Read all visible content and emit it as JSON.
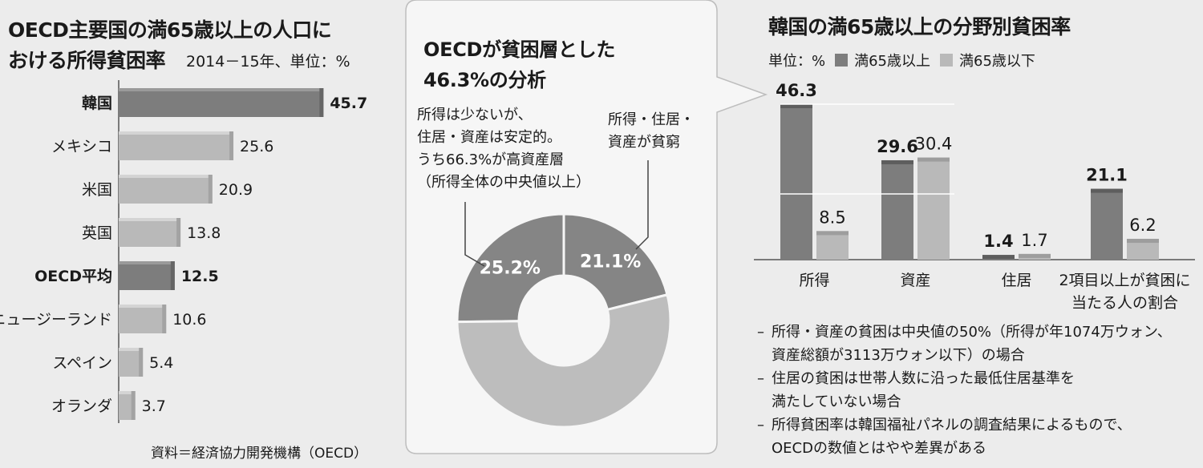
{
  "left": {
    "title_line1": "OECD主要国の満65歳以上の人口に",
    "title_line2": "おける所得貧困率",
    "subtitle": "2014－15年、単位：%",
    "source": "資料＝経済協力開発機構（OECD）"
  },
  "middle": {
    "title_line1": "OECDが貧困層とした",
    "title_line2": "46.3%の分析",
    "left_note": [
      "所得は少ないが、",
      "住居・資産は安定的。",
      "うち66.3%が高資産層",
      "（所得全体の中央値以上）"
    ],
    "right_note": [
      "所得・住居・",
      "資産が貧窮"
    ]
  },
  "right": {
    "title": "韓国の満65歳以上の分野別貧困率",
    "legend_unit": "単位：%",
    "notes": [
      "所得・資産の貧困は中央値の50%（所得が年1074万ウォン、\n資産総額が3113万ウォン以下）の場合",
      "住居の貧困は世帯人数に沿った最低住居基準を\n満たしていない場合",
      "所得貧困率は韓国福祉パネルの調査結果によるもので、\nOECDの数値とはやや差異がある"
    ]
  },
  "colors": {
    "dark_bar": "#7d7d7d",
    "light_bar": "#b9b9b9",
    "donut_dark": "#858585",
    "donut_light": "#bdbdbd",
    "bubble": "#f6f6f6"
  },
  "chart_data": [
    {
      "type": "bar",
      "orientation": "horizontal",
      "title": "OECD主要国の満65歳以上の人口における所得貧困率",
      "subtitle": "2014－15年、単位：%",
      "categories": [
        "韓国",
        "メキシコ",
        "米国",
        "英国",
        "OECD平均",
        "ニュージーランド",
        "スペイン",
        "オランダ"
      ],
      "values": [
        45.7,
        25.6,
        20.9,
        13.8,
        12.5,
        10.6,
        5.4,
        3.7
      ],
      "value_labels": [
        "45.7",
        "25.6",
        "20.9",
        "13.8",
        "12.5",
        "10.6",
        "5.4",
        "3.7"
      ],
      "highlighted": [
        "韓国",
        "OECD平均"
      ],
      "xlim": [
        0,
        46
      ]
    },
    {
      "type": "pie",
      "title": "OECDが貧困層とした46.3%の分析",
      "slices": [
        {
          "value": 25.2,
          "label": "25.2%",
          "color": "dark"
        },
        {
          "value": 21.1,
          "label": "21.1%",
          "color": "dark"
        },
        {
          "value": 53.7,
          "label": "",
          "color": "light"
        }
      ]
    },
    {
      "type": "bar",
      "orientation": "vertical",
      "title": "韓国の満65歳以上の分野別貧困率",
      "categories": [
        [
          "所得"
        ],
        [
          "資産"
        ],
        [
          "住居"
        ],
        [
          "2項目以上が貧困に",
          "当たる人の割合"
        ]
      ],
      "series": [
        {
          "name": "満65歳以上",
          "values": [
            46.3,
            29.6,
            1.4,
            21.1
          ],
          "labels": [
            "46.3",
            "29.6",
            "1.4",
            "21.1"
          ]
        },
        {
          "name": "満65歳以下",
          "values": [
            8.5,
            30.4,
            1.7,
            6.2
          ],
          "labels": [
            "8.5",
            "30.4",
            "1.7",
            "6.2"
          ]
        }
      ],
      "ylim": [
        0,
        46.3
      ]
    }
  ]
}
